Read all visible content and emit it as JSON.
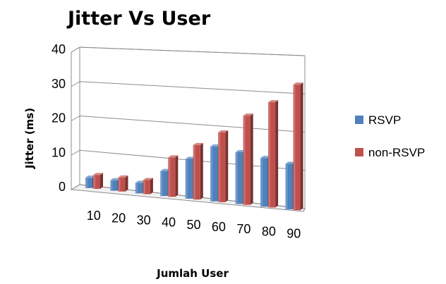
{
  "chart_data": {
    "type": "bar",
    "style": "3d-clustered-column",
    "title": "Jitter Vs User",
    "xlabel": "Jumlah User",
    "ylabel": "Jitter (ms)",
    "categories": [
      "10",
      "20",
      "30",
      "40",
      "50",
      "60",
      "70",
      "80",
      "90"
    ],
    "series": [
      {
        "name": "RSVP",
        "color": "#4f81bd",
        "values": [
          3,
          3,
          3,
          7,
          11,
          15,
          14,
          13,
          12
        ]
      },
      {
        "name": "non-RSVP",
        "color": "#c0504d",
        "values": [
          4,
          4,
          4,
          11,
          15,
          19,
          24,
          28,
          33
        ]
      }
    ],
    "ylim": [
      0,
      40
    ],
    "yticks": [
      "0",
      "10",
      "20",
      "30",
      "40"
    ],
    "grid": true,
    "legend_position": "right"
  }
}
